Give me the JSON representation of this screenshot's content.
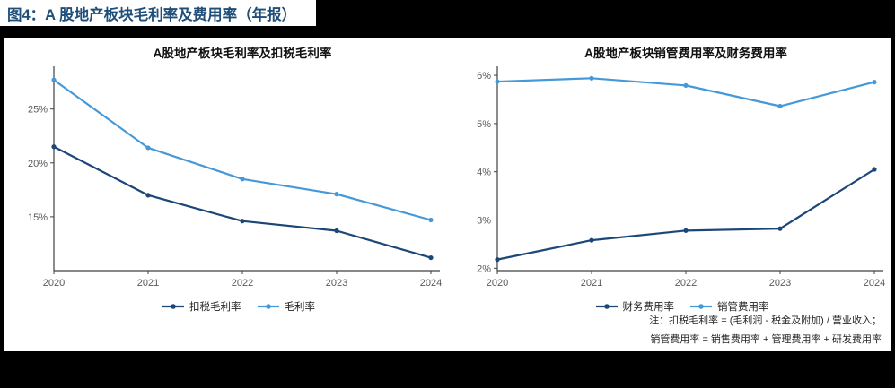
{
  "page": {
    "figure_title": "图4：A 股地产板块毛利率及费用率（年报）",
    "title_color": "#1f4e79",
    "background_color": "#000000",
    "panel_color": "#ffffff"
  },
  "notes": {
    "line1": "注：扣税毛利率 = (毛利润 - 税金及附加) / 营业收入；",
    "line2": "销管费用率 = 销售费用率 + 管理费用率 + 研发费用率"
  },
  "colors": {
    "dark_series": "#1b4678",
    "light_series": "#4599d8",
    "axis": "#404040",
    "tick_label": "#595959"
  },
  "chart_data": [
    {
      "type": "line",
      "title": "A股地产板块毛利率及扣税毛利率",
      "categories": [
        "2020",
        "2021",
        "2022",
        "2023",
        "2024"
      ],
      "series": [
        {
          "name": "扣税毛利率",
          "color": "#1b4678",
          "values": [
            21.5,
            17.0,
            14.6,
            13.7,
            11.2
          ]
        },
        {
          "name": "毛利率",
          "color": "#4599d8",
          "values": [
            27.7,
            21.4,
            18.5,
            17.1,
            14.7
          ]
        }
      ],
      "xlabel": "",
      "ylabel": "",
      "ylim": [
        10,
        28.8
      ],
      "yticks": [
        15,
        20,
        25
      ],
      "tick_suffix": "%",
      "grid": false,
      "legend_position": "bottom"
    },
    {
      "type": "line",
      "title": "A股地产板块销管费用率及财务费用率",
      "categories": [
        "2020",
        "2021",
        "2022",
        "2023",
        "2024"
      ],
      "series": [
        {
          "name": "财务费用率",
          "color": "#1b4678",
          "values": [
            2.18,
            2.58,
            2.78,
            2.82,
            4.05
          ]
        },
        {
          "name": "销管费用率",
          "color": "#4599d8",
          "values": [
            5.87,
            5.94,
            5.79,
            5.36,
            5.86
          ]
        }
      ],
      "xlabel": "",
      "ylabel": "",
      "ylim": [
        1.95,
        6.15
      ],
      "yticks": [
        2,
        3,
        4,
        5,
        6
      ],
      "tick_suffix": "%",
      "grid": false,
      "legend_position": "bottom"
    }
  ]
}
